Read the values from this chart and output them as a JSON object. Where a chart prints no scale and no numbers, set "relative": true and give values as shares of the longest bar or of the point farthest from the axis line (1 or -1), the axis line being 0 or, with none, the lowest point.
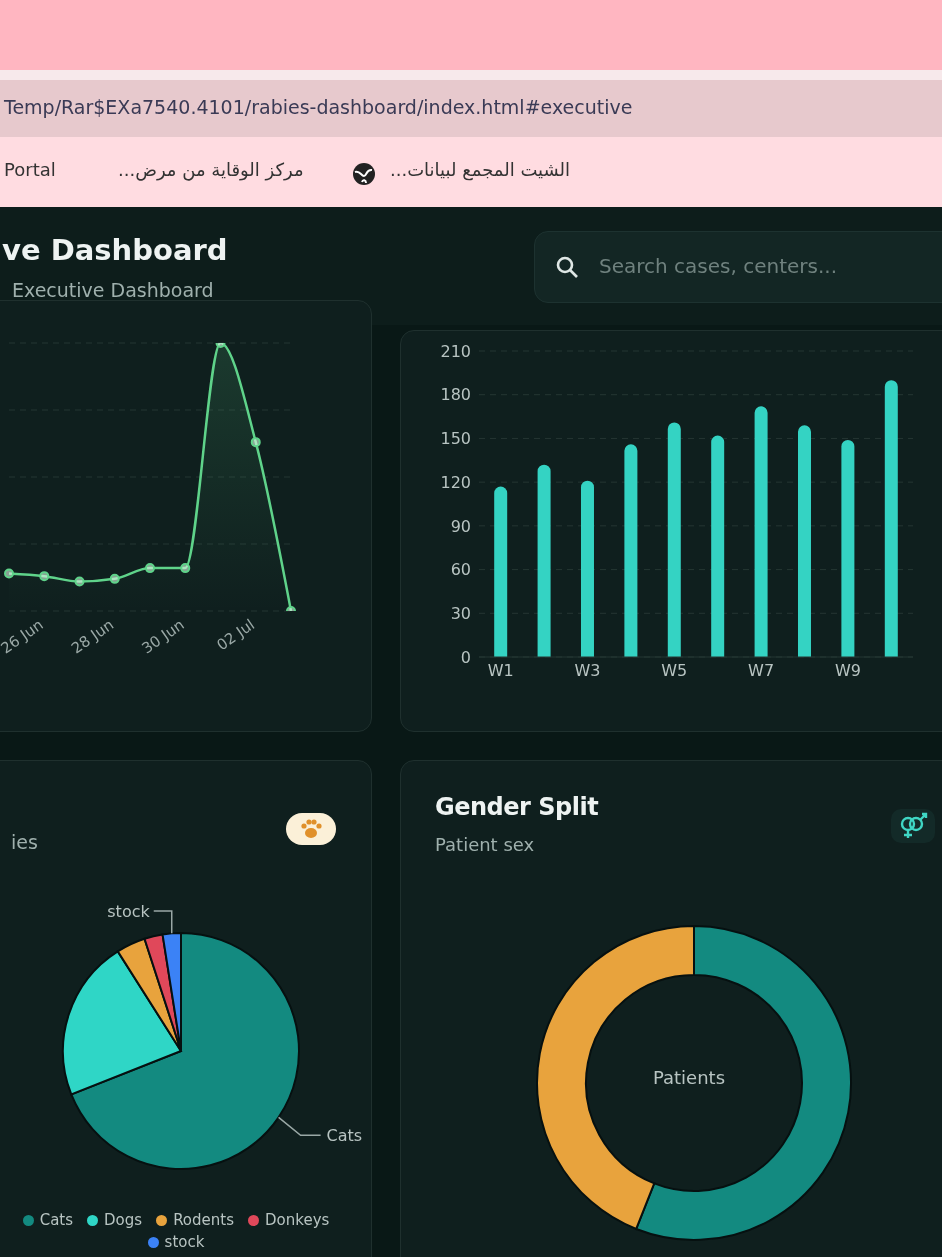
{
  "chart_data": [
    {
      "type": "other",
      "title": "ve Dashboard",
      "annotations": [
        "Executive Dashboard",
        "Search cases, centers...",
        "Temp/Rar$EXa7540.4101/rabies-dashboard/index.html#executive",
        "Portal",
        "مركز الوقاية من مرض...",
        "الشيت المجمع لبيانات..."
      ]
    },
    {
      "type": "area",
      "categories": [
        null,
        "26 Jun",
        null,
        "28 Jun",
        null,
        "30 Jun",
        null,
        "02 Jul",
        null
      ],
      "values": [
        0.14,
        0.13,
        0.11,
        0.12,
        0.16,
        0.16,
        1,
        0.63,
        0
      ],
      "color": "#5fd38a",
      "relative": true,
      "grid": "y",
      "marker": "circle",
      "line_style": "solid"
    },
    {
      "type": "bar",
      "categories": [
        "W1",
        null,
        "W3",
        null,
        "W5",
        null,
        "W7",
        null,
        "W9",
        null
      ],
      "values": [
        117,
        132,
        121,
        146,
        161,
        152,
        172,
        159,
        149,
        190
      ],
      "color": "#34d3c3",
      "ylim": [
        0,
        210
      ],
      "yticks": [
        0,
        30,
        60,
        90,
        120,
        150,
        180,
        210
      ],
      "grid": "y"
    },
    {
      "type": "pie",
      "title": "ies",
      "categories": [
        "Cats",
        "Dogs",
        "Rodents",
        "Donkeys",
        "stock"
      ],
      "values": [
        69,
        22,
        4,
        2.5,
        2.5
      ],
      "colors": [
        "#138a80",
        "#2fd6c6",
        "#e8a33d",
        "#e0485a",
        "#3b82f6"
      ],
      "legend": "bottom"
    },
    {
      "type": "donut",
      "title": "Gender Split",
      "subtitle": "Patient sex",
      "categories": [
        null,
        null
      ],
      "values": [
        56,
        44
      ],
      "colors": [
        "#138a80",
        "#e8a33d"
      ],
      "annotations": [
        "Patients"
      ]
    }
  ]
}
